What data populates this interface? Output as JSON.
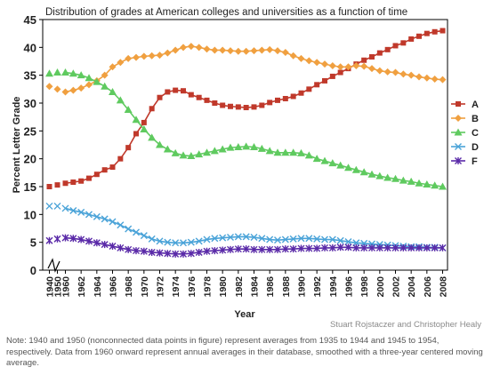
{
  "chart_data": {
    "type": "line",
    "title": "Distribution of grades at American colleges and universities as a function of time",
    "xlabel": "Year",
    "ylabel": "Percent Letter Grade",
    "ylim": [
      0,
      45
    ],
    "yticks": [
      "0",
      "5",
      "10",
      "15",
      "20",
      "25",
      "30",
      "35",
      "40",
      "45"
    ],
    "xticks": [
      "1940",
      "1950",
      "1960",
      "1962",
      "1964",
      "1966",
      "1968",
      "1970",
      "1972",
      "1974",
      "1976",
      "1978",
      "1980",
      "1982",
      "1984",
      "1986",
      "1988",
      "1990",
      "1992",
      "1994",
      "1996",
      "1998",
      "2000",
      "2002",
      "2004",
      "2006",
      "2008"
    ],
    "grid": false,
    "legend_position": "right",
    "x": [
      1940,
      1950,
      1960,
      1961,
      1962,
      1963,
      1964,
      1965,
      1966,
      1967,
      1968,
      1969,
      1970,
      1971,
      1972,
      1973,
      1974,
      1975,
      1976,
      1977,
      1978,
      1979,
      1980,
      1981,
      1982,
      1983,
      1984,
      1985,
      1986,
      1987,
      1988,
      1989,
      1990,
      1991,
      1992,
      1993,
      1994,
      1995,
      1996,
      1997,
      1998,
      1999,
      2000,
      2001,
      2002,
      2003,
      2004,
      2005,
      2006,
      2007,
      2008
    ],
    "series": [
      {
        "name": "A",
        "color": "#c0392b",
        "marker": "square",
        "values": [
          15.0,
          15.3,
          15.6,
          15.8,
          16.0,
          16.5,
          17.2,
          18.0,
          18.5,
          20.0,
          22.0,
          24.5,
          26.5,
          29.0,
          31.0,
          32.0,
          32.3,
          32.2,
          31.5,
          31.0,
          30.5,
          30.0,
          29.6,
          29.4,
          29.3,
          29.2,
          29.3,
          29.6,
          30.1,
          30.5,
          30.8,
          31.2,
          31.8,
          32.5,
          33.3,
          34.0,
          34.8,
          35.5,
          36.2,
          37.0,
          37.7,
          38.3,
          39.0,
          39.6,
          40.3,
          40.8,
          41.5,
          42.0,
          42.5,
          42.8,
          43.0
        ]
      },
      {
        "name": "B",
        "color": "#f0a040",
        "marker": "diamond",
        "values": [
          33.0,
          32.5,
          32.0,
          32.3,
          32.7,
          33.3,
          34.0,
          35.0,
          36.5,
          37.3,
          38.0,
          38.2,
          38.4,
          38.5,
          38.6,
          39.0,
          39.5,
          40.0,
          40.2,
          40.0,
          39.7,
          39.5,
          39.5,
          39.4,
          39.3,
          39.3,
          39.4,
          39.5,
          39.6,
          39.4,
          39.1,
          38.5,
          38.0,
          37.6,
          37.3,
          37.0,
          36.7,
          36.5,
          36.5,
          36.7,
          36.6,
          36.2,
          35.8,
          35.6,
          35.5,
          35.2,
          35.0,
          34.7,
          34.5,
          34.3,
          34.2
        ]
      },
      {
        "name": "C",
        "color": "#5fca5f",
        "marker": "triangle",
        "values": [
          35.3,
          35.5,
          35.5,
          35.3,
          35.0,
          34.5,
          33.8,
          33.0,
          32.0,
          30.5,
          28.8,
          27.0,
          25.3,
          23.8,
          22.5,
          21.7,
          21.0,
          20.6,
          20.5,
          20.8,
          21.1,
          21.4,
          21.7,
          22.0,
          22.1,
          22.2,
          22.1,
          21.8,
          21.4,
          21.1,
          21.1,
          21.1,
          21.0,
          20.6,
          20.0,
          19.6,
          19.2,
          18.8,
          18.4,
          18.0,
          17.6,
          17.2,
          16.9,
          16.6,
          16.4,
          16.1,
          15.9,
          15.6,
          15.4,
          15.2,
          15.0
        ]
      },
      {
        "name": "D",
        "color": "#4aa3d8",
        "marker": "x",
        "values": [
          11.5,
          11.5,
          11.1,
          10.7,
          10.4,
          10.0,
          9.6,
          9.2,
          8.7,
          8.1,
          7.4,
          6.8,
          6.2,
          5.6,
          5.2,
          5.0,
          4.9,
          4.9,
          5.0,
          5.2,
          5.5,
          5.7,
          5.8,
          5.9,
          6.0,
          6.0,
          5.9,
          5.7,
          5.5,
          5.4,
          5.5,
          5.6,
          5.7,
          5.7,
          5.6,
          5.5,
          5.5,
          5.3,
          5.1,
          4.9,
          4.8,
          4.7,
          4.6,
          4.5,
          4.4,
          4.3,
          4.2,
          4.2,
          4.1,
          4.1,
          4.0
        ]
      },
      {
        "name": "F",
        "color": "#5a2aa8",
        "marker": "star",
        "values": [
          5.3,
          5.6,
          5.8,
          5.7,
          5.5,
          5.2,
          4.9,
          4.6,
          4.3,
          4.0,
          3.7,
          3.5,
          3.4,
          3.2,
          3.1,
          3.0,
          2.9,
          2.9,
          3.0,
          3.2,
          3.4,
          3.5,
          3.6,
          3.7,
          3.8,
          3.8,
          3.7,
          3.7,
          3.7,
          3.7,
          3.8,
          3.8,
          3.9,
          3.9,
          3.9,
          4.0,
          4.0,
          4.1,
          4.1,
          4.0,
          4.0,
          4.0,
          4.0,
          4.0,
          4.0,
          4.0,
          4.0,
          4.0,
          4.0,
          4.0,
          4.0
        ]
      }
    ]
  },
  "credit": "Stuart Rojstaczer and Christopher Healy",
  "note": "Note: 1940 and 1950 (nonconnected data points in figure) represent averages from 1935 to 1944 and 1945 to 1954, respectively. Data from 1960 onward represent annual averages in their database, smoothed with a three-year centered moving average."
}
